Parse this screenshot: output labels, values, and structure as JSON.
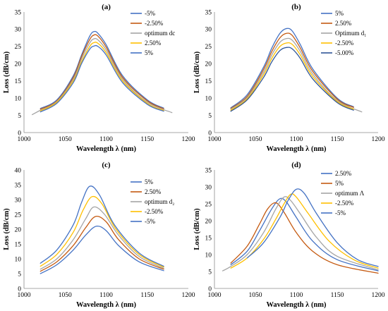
{
  "chart_data": [
    {
      "type": "line",
      "title": "(a)",
      "xlabel": "Wavelength λ (nm)",
      "ylabel": "Loss (dB/cm)",
      "xlim": [
        1000,
        1200
      ],
      "ylim": [
        0,
        35
      ],
      "xticks": [
        1000,
        1050,
        1100,
        1150,
        1200
      ],
      "yticks": [
        0,
        5,
        10,
        15,
        20,
        25,
        30,
        35
      ],
      "legend_position": "top-right",
      "series": [
        {
          "name": "-5%",
          "color": "#4472C4",
          "width": 1.3,
          "x": [
            1020,
            1040,
            1060,
            1070,
            1080,
            1085,
            1090,
            1100,
            1120,
            1150,
            1170
          ],
          "y": [
            7.0,
            9.5,
            16.5,
            22.5,
            28.0,
            29.3,
            28.8,
            25.5,
            16.5,
            9.5,
            7.1
          ]
        },
        {
          "name": "-2.50%",
          "color": "#C55A11",
          "width": 1.3,
          "x": [
            1020,
            1040,
            1060,
            1070,
            1080,
            1085,
            1090,
            1100,
            1120,
            1150,
            1170
          ],
          "y": [
            6.8,
            9.2,
            16.0,
            22.0,
            27.0,
            28.3,
            28.0,
            24.8,
            16.0,
            9.2,
            6.9
          ]
        },
        {
          "name": "optimum dc",
          "color": "#A5A5A5",
          "width": 1.3,
          "x": [
            1010,
            1020,
            1040,
            1060,
            1070,
            1080,
            1085,
            1090,
            1100,
            1120,
            1150,
            1180
          ],
          "y": [
            5.2,
            6.5,
            9.0,
            15.5,
            21.3,
            26.0,
            27.2,
            26.9,
            24.0,
            15.5,
            8.8,
            5.8
          ]
        },
        {
          "name": "2.50%",
          "color": "#FFC000",
          "width": 1.3,
          "x": [
            1020,
            1040,
            1060,
            1070,
            1080,
            1085,
            1090,
            1100,
            1120,
            1150,
            1170
          ],
          "y": [
            6.3,
            8.8,
            15.0,
            20.5,
            25.0,
            26.1,
            25.9,
            23.2,
            15.0,
            8.5,
            6.4
          ]
        },
        {
          "name": "5%",
          "color": "#4472C4",
          "width": 1.3,
          "x": [
            1020,
            1040,
            1060,
            1070,
            1080,
            1085,
            1090,
            1100,
            1120,
            1150,
            1170
          ],
          "y": [
            6.0,
            8.5,
            14.5,
            20.0,
            24.2,
            25.1,
            25.0,
            22.5,
            14.5,
            8.2,
            6.2
          ]
        }
      ]
    },
    {
      "type": "line",
      "title": "(b)",
      "xlabel": "Wavelength λ (nm)",
      "ylabel": "Loss (dB/cm)",
      "xlim": [
        1000,
        1200
      ],
      "ylim": [
        0,
        35
      ],
      "xticks": [
        1000,
        1050,
        1100,
        1150,
        1200
      ],
      "yticks": [
        0,
        5,
        10,
        15,
        20,
        25,
        30,
        35
      ],
      "legend_position": "top-right",
      "series": [
        {
          "name": "5%",
          "color": "#4472C4",
          "width": 1.3,
          "x": [
            1020,
            1040,
            1060,
            1070,
            1080,
            1088,
            1095,
            1105,
            1120,
            1150,
            1170
          ],
          "y": [
            7.2,
            11.0,
            19.0,
            24.5,
            28.8,
            30.2,
            29.5,
            25.5,
            18.5,
            10.0,
            7.5
          ]
        },
        {
          "name": "2.50%",
          "color": "#C55A11",
          "width": 1.3,
          "x": [
            1020,
            1040,
            1060,
            1070,
            1080,
            1088,
            1095,
            1105,
            1120,
            1150,
            1170
          ],
          "y": [
            7.0,
            10.5,
            18.3,
            23.5,
            27.5,
            28.8,
            28.2,
            24.5,
            17.8,
            9.7,
            7.3
          ]
        },
        {
          "name": "Optimum d₁",
          "color": "#A5A5A5",
          "width": 1.3,
          "x": [
            1020,
            1040,
            1060,
            1070,
            1080,
            1088,
            1095,
            1105,
            1120,
            1150,
            1180
          ],
          "y": [
            6.8,
            10.2,
            17.5,
            22.5,
            26.2,
            27.3,
            26.8,
            23.5,
            17.0,
            9.3,
            6.0
          ]
        },
        {
          "name": "-2.50%",
          "color": "#FFC000",
          "width": 1.3,
          "x": [
            1020,
            1040,
            1060,
            1070,
            1080,
            1088,
            1095,
            1105,
            1120,
            1150,
            1170
          ],
          "y": [
            6.5,
            9.8,
            16.8,
            21.5,
            25.0,
            26.0,
            25.6,
            22.5,
            16.3,
            9.0,
            6.8
          ]
        },
        {
          "name": "-5.00%",
          "color": "#2F5597",
          "width": 1.3,
          "x": [
            1020,
            1040,
            1060,
            1070,
            1080,
            1088,
            1095,
            1105,
            1120,
            1150,
            1170
          ],
          "y": [
            6.2,
            9.5,
            16.0,
            20.5,
            23.8,
            24.7,
            24.3,
            21.5,
            15.6,
            8.7,
            6.5
          ]
        }
      ]
    },
    {
      "type": "line",
      "title": "(c)",
      "xlabel": "Wavelength λ (nm)",
      "ylabel": "Loss (dB/cm)",
      "xlim": [
        1000,
        1200
      ],
      "ylim": [
        0,
        40
      ],
      "xticks": [
        1000,
        1050,
        1100,
        1150,
        1200
      ],
      "yticks": [
        0,
        5,
        10,
        15,
        20,
        25,
        30,
        35,
        40
      ],
      "legend_position": "top-right",
      "series": [
        {
          "name": "5%",
          "color": "#4472C4",
          "width": 1.3,
          "x": [
            1020,
            1040,
            1060,
            1075,
            1088,
            1100,
            1115,
            1140,
            1170
          ],
          "y": [
            5.0,
            8.0,
            13.0,
            18.0,
            21.0,
            19.5,
            14.5,
            9.0,
            6.0
          ]
        },
        {
          "name": "2.50%",
          "color": "#C55A11",
          "width": 1.3,
          "x": [
            1020,
            1040,
            1060,
            1075,
            1087,
            1100,
            1115,
            1140,
            1170
          ],
          "y": [
            5.8,
            9.0,
            14.5,
            20.5,
            24.3,
            22.5,
            16.5,
            10.0,
            6.5
          ]
        },
        {
          "name": "optimum d₂",
          "color": "#A5A5A5",
          "width": 1.3,
          "x": [
            1020,
            1040,
            1060,
            1075,
            1085,
            1098,
            1115,
            1140,
            1170
          ],
          "y": [
            6.5,
            10.0,
            16.5,
            23.5,
            27.5,
            25.0,
            18.0,
            10.8,
            6.8
          ]
        },
        {
          "name": "-2.50%",
          "color": "#FFC000",
          "width": 1.3,
          "x": [
            1020,
            1040,
            1060,
            1072,
            1083,
            1095,
            1112,
            1140,
            1170
          ],
          "y": [
            7.5,
            11.5,
            19.0,
            26.5,
            31.0,
            28.5,
            20.0,
            11.5,
            7.2
          ]
        },
        {
          "name": "-5%",
          "color": "#4472C4",
          "width": 1.3,
          "x": [
            1020,
            1040,
            1060,
            1070,
            1080,
            1092,
            1110,
            1140,
            1170
          ],
          "y": [
            8.5,
            13.0,
            21.5,
            29.0,
            34.5,
            31.5,
            21.5,
            12.0,
            7.5
          ]
        }
      ]
    },
    {
      "type": "line",
      "title": "(d)",
      "xlabel": "Wavelength λ (nm)",
      "ylabel": "Loss (dB/cm)",
      "xlim": [
        1000,
        1200
      ],
      "ylim": [
        0,
        35
      ],
      "xticks": [
        1000,
        1050,
        1100,
        1150,
        1200
      ],
      "yticks": [
        0,
        5,
        10,
        15,
        20,
        25,
        30,
        35
      ],
      "legend_position": "top-right",
      "series": [
        {
          "name": "2.50%",
          "color": "#4472C4",
          "width": 1.3,
          "x": [
            1020,
            1040,
            1055,
            1070,
            1080,
            1088,
            1100,
            1120,
            1150,
            1200
          ],
          "y": [
            7.0,
            11.0,
            17.0,
            23.5,
            26.5,
            25.5,
            21.0,
            14.0,
            8.5,
            5.2
          ]
        },
        {
          "name": "5%",
          "color": "#C55A11",
          "width": 1.3,
          "x": [
            1020,
            1040,
            1055,
            1065,
            1075,
            1085,
            1100,
            1120,
            1150,
            1200
          ],
          "y": [
            7.5,
            12.5,
            19.0,
            23.5,
            25.3,
            22.5,
            16.5,
            11.0,
            7.0,
            4.5
          ]
        },
        {
          "name": "optimum Λ",
          "color": "#A5A5A5",
          "width": 1.3,
          "x": [
            1010,
            1020,
            1040,
            1060,
            1075,
            1085,
            1093,
            1105,
            1125,
            1150,
            1200
          ],
          "y": [
            5.2,
            6.5,
            10.0,
            16.5,
            23.5,
            27.0,
            26.0,
            22.0,
            15.0,
            9.5,
            5.5
          ]
        },
        {
          "name": "-2.50%",
          "color": "#FFC000",
          "width": 1.3,
          "x": [
            1020,
            1040,
            1060,
            1075,
            1085,
            1093,
            1100,
            1115,
            1140,
            1170,
            1200
          ],
          "y": [
            6.0,
            9.0,
            14.5,
            20.5,
            25.0,
            27.8,
            27.0,
            22.0,
            14.0,
            8.5,
            6.0
          ]
        },
        {
          "name": "-5%",
          "color": "#4472C4",
          "width": 1.3,
          "x": [
            1040,
            1060,
            1080,
            1090,
            1100,
            1110,
            1125,
            1150,
            1175,
            1200
          ],
          "y": [
            9.0,
            13.5,
            21.0,
            26.0,
            29.3,
            28.0,
            22.0,
            13.5,
            8.5,
            6.5
          ]
        }
      ]
    }
  ]
}
